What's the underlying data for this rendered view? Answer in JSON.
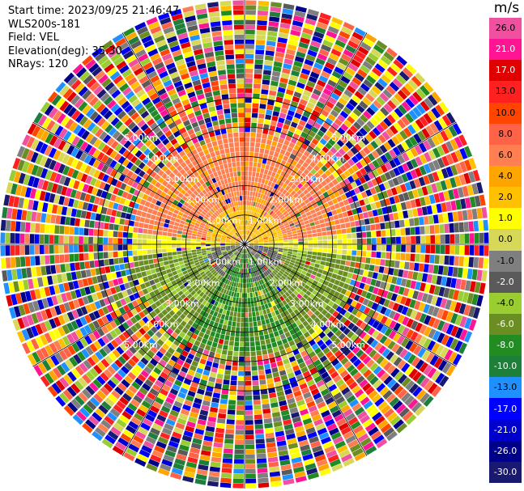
{
  "info": {
    "start_time": "Start time: 2023/09/25 21:46:47",
    "station": "WLS200s-181",
    "field": "Field: VEL",
    "elevation": "Elevation(deg): 35.30",
    "nrays": "NRays: 120"
  },
  "chart_data": {
    "type": "heatmap",
    "projection": "polar-ppi",
    "nrays": 120,
    "max_range_km": 5.0,
    "range_rings_km": [
      1.0,
      2.0,
      3.0,
      4.0,
      5.0
    ],
    "ring_labels": [
      "1.00km",
      "2.00km",
      "3.00km",
      "4.00km",
      "5.00km"
    ],
    "colorbar": {
      "unit": "m/s",
      "ticks": [
        "26.0",
        "21.0",
        "17.0",
        "13.0",
        "10.0",
        "8.0",
        "6.0",
        "4.0",
        "2.0",
        "1.0",
        "0.0",
        "-1.0",
        "-2.0",
        "-4.0",
        "-6.0",
        "-8.0",
        "-10.0",
        "-13.0",
        "-17.0",
        "-21.0",
        "-26.0",
        "-30.0"
      ],
      "colors": [
        "#f050a0",
        "#ff1493",
        "#e00000",
        "#ff2020",
        "#ff4500",
        "#ff6347",
        "#ff7f50",
        "#ffa500",
        "#ffc000",
        "#ffff00",
        "#d8d858",
        "#7f7f7f",
        "#5a5a5a",
        "#9acd32",
        "#6b8e23",
        "#228b22",
        "#1e7f3a",
        "#1e90ff",
        "#0000ff",
        "#0000cd",
        "#00008b",
        "#191970"
      ]
    },
    "velocity_zones": [
      {
        "from_km": 0.0,
        "to_km": 0.8,
        "north": "2.0",
        "south": "-2.0"
      },
      {
        "from_km": 0.8,
        "to_km": 2.3,
        "north": "6.0",
        "south": "-6.0"
      },
      {
        "from_km": 2.3,
        "to_km": 3.2,
        "north": "8.0",
        "south": "-6.0"
      },
      {
        "from_km": 3.2,
        "to_km": 5.0,
        "north": "noise",
        "south": "noise"
      }
    ]
  }
}
